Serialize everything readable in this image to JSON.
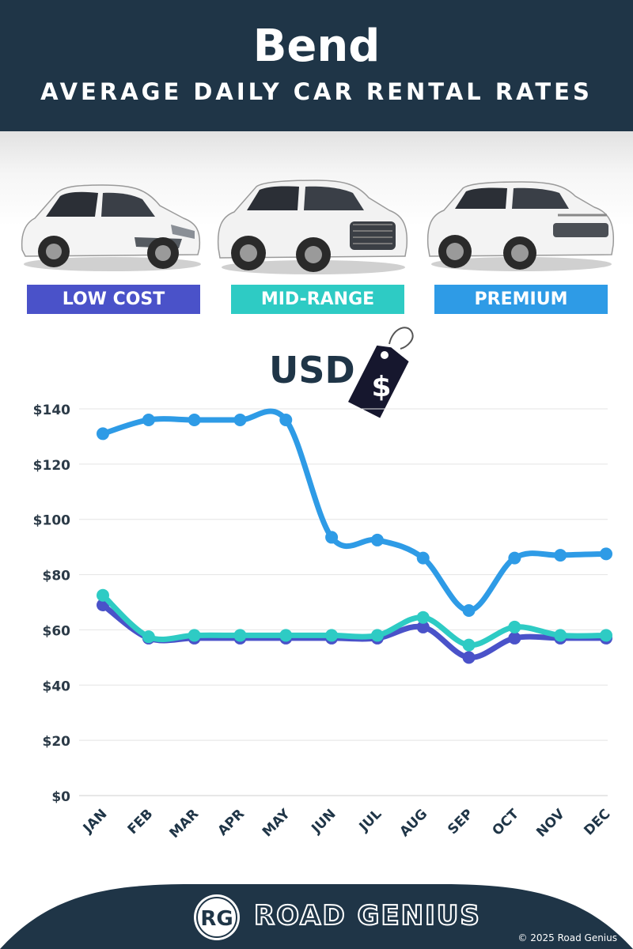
{
  "header": {
    "city": "Bend",
    "subtitle": "AVERAGE DAILY CAR RENTAL RATES"
  },
  "categories": [
    {
      "label": "LOW COST",
      "color": "#4a52c9"
    },
    {
      "label": "MID-RANGE",
      "color": "#2ecbc4"
    },
    {
      "label": "PREMIUM",
      "color": "#2e9be6"
    }
  ],
  "currency_label": "USD",
  "price_tag_symbol": "$",
  "colors": {
    "header_bg": "#1f3547",
    "low_cost": "#4a52c9",
    "mid_range": "#2ecbc4",
    "premium": "#2e9be6"
  },
  "chart_data": {
    "type": "line",
    "categories": [
      "JAN",
      "FEB",
      "MAR",
      "APR",
      "MAY",
      "JUN",
      "JUL",
      "AUG",
      "SEP",
      "OCT",
      "NOV",
      "DEC"
    ],
    "series": [
      {
        "name": "PREMIUM",
        "color": "#2e9be6",
        "values": [
          131,
          136,
          136,
          136,
          136,
          93.5,
          92.5,
          86,
          67,
          86,
          87,
          87.5
        ]
      },
      {
        "name": "MID-RANGE",
        "color": "#2ecbc4",
        "values": [
          72.5,
          57.5,
          58,
          58,
          58,
          58,
          58,
          64.5,
          54.5,
          61,
          58,
          58
        ]
      },
      {
        "name": "LOW COST",
        "color": "#4a52c9",
        "values": [
          69,
          57,
          57,
          57,
          57,
          57,
          57,
          61,
          50,
          57,
          57,
          57
        ]
      }
    ],
    "ylim": [
      0,
      140
    ],
    "yticks": [
      0,
      20,
      40,
      60,
      80,
      100,
      120,
      140
    ],
    "ytick_labels": [
      "$0",
      "$20",
      "$40",
      "$60",
      "$80",
      "$100",
      "$120",
      "$140"
    ],
    "grid": true
  },
  "footer": {
    "logo_text": "RG",
    "brand": "ROAD GENIUS",
    "copyright": "© 2025 Road Genius"
  }
}
